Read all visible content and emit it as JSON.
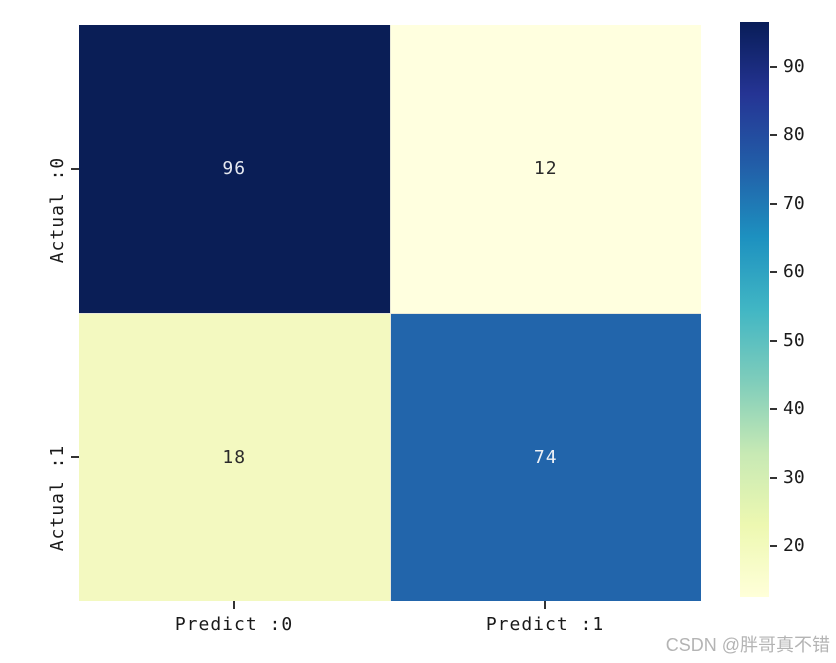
{
  "watermark": {
    "text": "CSDN @胖哥真不错",
    "color": "#b4b4b4"
  },
  "chart_data": {
    "type": "heatmap",
    "title": "",
    "xlabel": "",
    "ylabel": "",
    "x_tick_labels": [
      "Predict :0",
      "Predict :1"
    ],
    "y_tick_labels": [
      "Actual :0",
      "Actual :1"
    ],
    "matrix": [
      [
        96,
        12
      ],
      [
        18,
        74
      ]
    ],
    "vmin": 12,
    "vmax": 96,
    "colormap": "YlGnBu",
    "grid": false,
    "legend_position": "right-colorbar",
    "cells": [
      {
        "row": "Actual :0",
        "col": "Predict :0",
        "value": "96",
        "bg": "#0a1e56",
        "fg": "#e6e9f0"
      },
      {
        "row": "Actual :0",
        "col": "Predict :1",
        "value": "12",
        "bg": "#ffffdf",
        "fg": "#2b2b2b"
      },
      {
        "row": "Actual :1",
        "col": "Predict :0",
        "value": "18",
        "bg": "#f3f9c0",
        "fg": "#2b2b2b"
      },
      {
        "row": "Actual :1",
        "col": "Predict :1",
        "value": "74",
        "bg": "#2265ab",
        "fg": "#eef1f6"
      }
    ],
    "colorbar": {
      "ticks": [
        "90",
        "80",
        "70",
        "60",
        "50",
        "40",
        "30",
        "20"
      ],
      "gradient_stops": [
        "#081d58 0%",
        "#253494 12.5%",
        "#225ea8 25%",
        "#1d91c0 37.5%",
        "#41b6c4 50%",
        "#7fcdbb 62.5%",
        "#c7e9b4 75%",
        "#edf8b1 87.5%",
        "#ffffd9 100%"
      ]
    }
  }
}
